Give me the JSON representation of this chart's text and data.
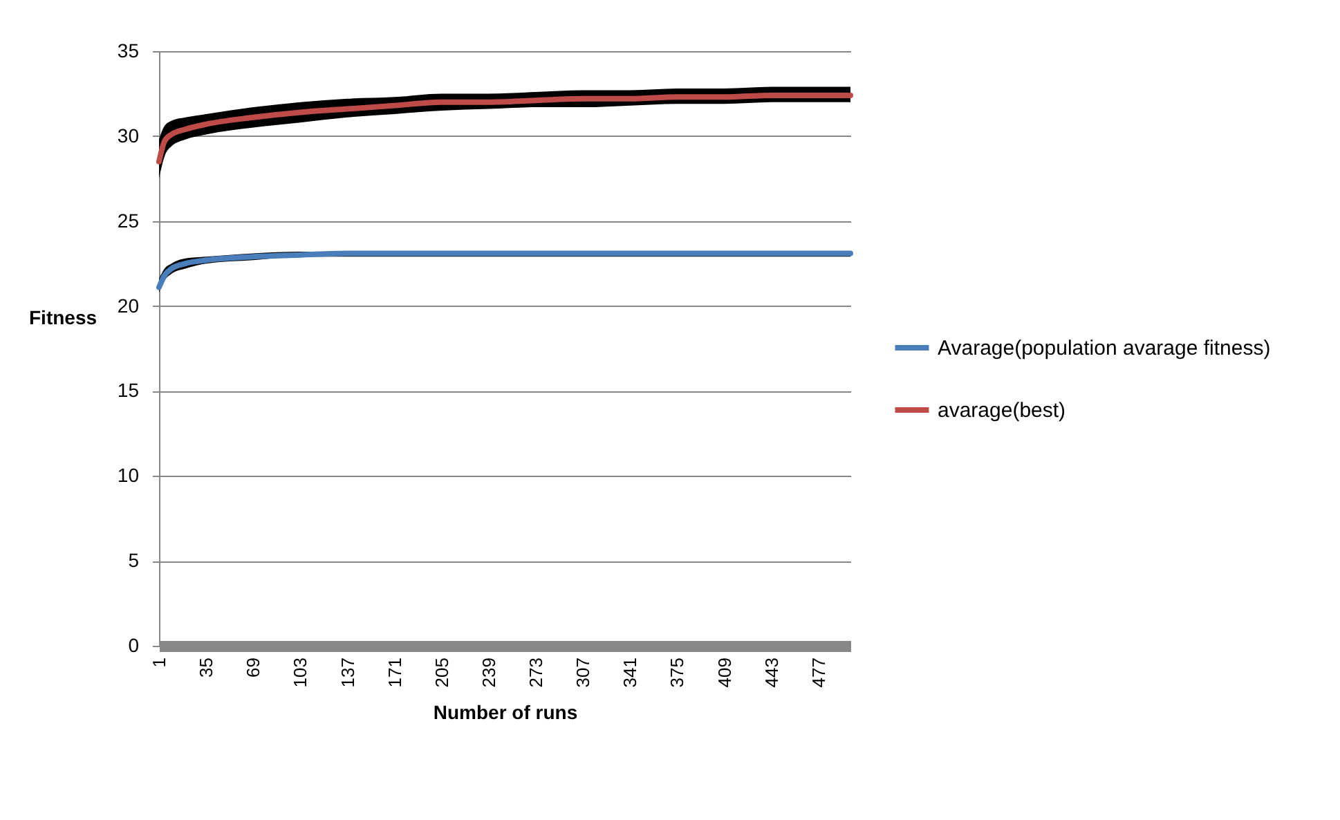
{
  "chart_data": {
    "type": "line",
    "xlabel": "Number of runs",
    "ylabel": "Fitness",
    "x": [
      1,
      5,
      10,
      20,
      35,
      69,
      103,
      137,
      171,
      205,
      239,
      273,
      307,
      341,
      375,
      409,
      443,
      477,
      500
    ],
    "xlim": [
      1,
      500
    ],
    "xticks": [
      1,
      35,
      69,
      103,
      137,
      171,
      205,
      239,
      273,
      307,
      341,
      375,
      409,
      443,
      477
    ],
    "ylim": [
      0,
      35
    ],
    "yticks": [
      0,
      5,
      10,
      15,
      20,
      25,
      30,
      35
    ],
    "grid": "y",
    "legend": "right",
    "marker": "none",
    "line_style": "solid",
    "series": [
      {
        "name": "Avarage(population avarage fitness)",
        "color": "#4a7ebb",
        "values": [
          21.1,
          21.8,
          22.2,
          22.5,
          22.7,
          22.9,
          23.0,
          23.1,
          23.1,
          23.1,
          23.1,
          23.1,
          23.1,
          23.1,
          23.1,
          23.1,
          23.1,
          23.1,
          23.1
        ],
        "lower": [
          20.8,
          21.5,
          21.9,
          22.2,
          22.5,
          22.7,
          22.9,
          22.9,
          22.9,
          22.9,
          22.9,
          22.9,
          22.9,
          22.9,
          22.9,
          22.9,
          22.9,
          22.9,
          22.9
        ],
        "upper": [
          21.6,
          22.2,
          22.5,
          22.8,
          22.9,
          23.1,
          23.2,
          23.2,
          23.2,
          23.2,
          23.2,
          23.2,
          23.2,
          23.2,
          23.2,
          23.2,
          23.2,
          23.2,
          23.2
        ]
      },
      {
        "name": "avarage(best)",
        "color": "#be4b48",
        "values": [
          28.5,
          29.7,
          30.1,
          30.4,
          30.7,
          31.1,
          31.4,
          31.6,
          31.8,
          32.0,
          32.0,
          32.1,
          32.2,
          32.2,
          32.3,
          32.3,
          32.4,
          32.4,
          32.4
        ],
        "lower": [
          27.5,
          28.8,
          29.4,
          29.8,
          30.1,
          30.5,
          30.8,
          31.1,
          31.3,
          31.5,
          31.6,
          31.7,
          31.7,
          31.8,
          31.9,
          31.9,
          32.0,
          32.0,
          32.0
        ],
        "upper": [
          29.8,
          30.6,
          30.9,
          31.1,
          31.3,
          31.7,
          32.0,
          32.2,
          32.3,
          32.5,
          32.5,
          32.6,
          32.7,
          32.7,
          32.8,
          32.8,
          32.9,
          32.9,
          32.9
        ]
      }
    ]
  }
}
